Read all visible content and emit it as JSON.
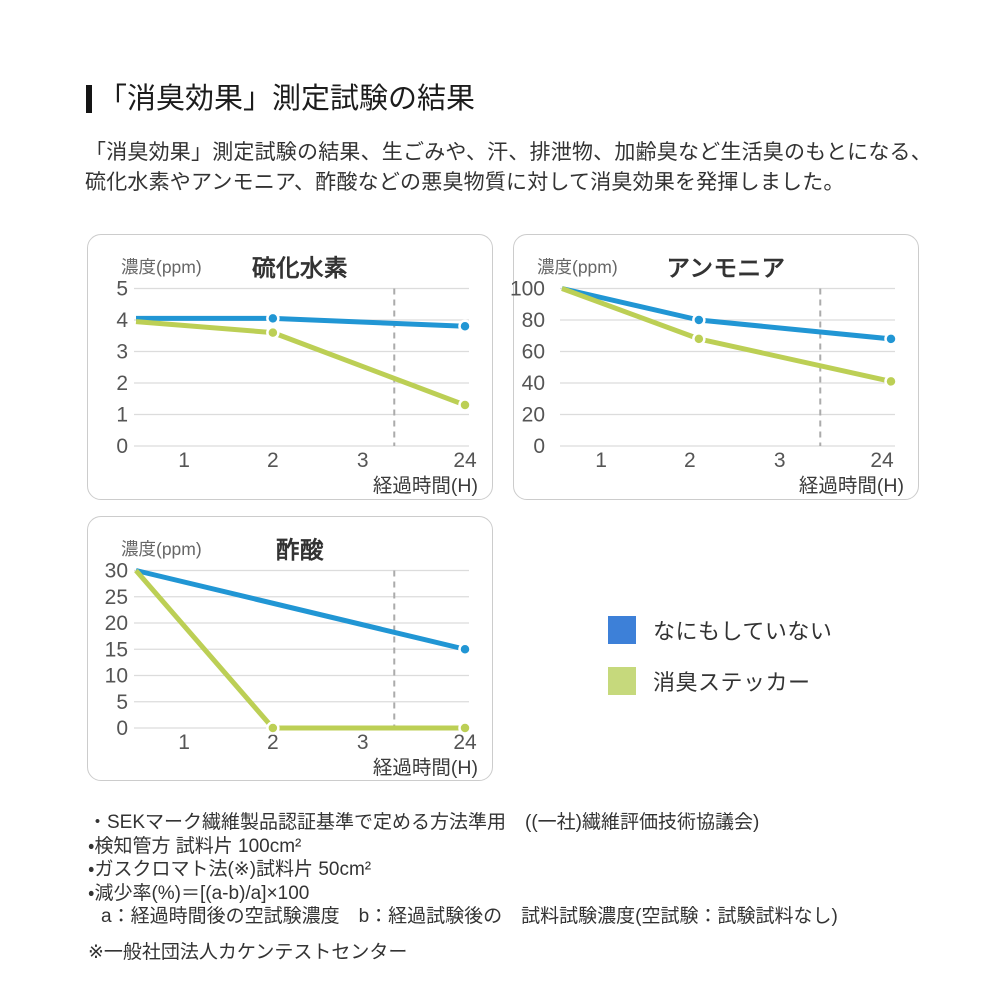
{
  "page": {
    "background": "#ffffff"
  },
  "header": {
    "title": "「消臭効果」測定試験の結果",
    "accent_bar_color": "#151515",
    "description_lines": [
      "「消臭効果」測定試験の結果、生ごみや、汗、排泄物、加齢臭など生活臭のもとになる、",
      "硫化水素やアンモニア、酢酸などの悪臭物質に対して消臭効果を発揮しました。"
    ]
  },
  "chart_data": [
    {
      "type": "line",
      "title": "硫化水素",
      "ylabel": "濃度(ppm)",
      "xlabel": "経過時間(H)",
      "categories": [
        "1",
        "2",
        "3",
        "24"
      ],
      "ylim": [
        0,
        5
      ],
      "yticks": [
        0,
        1,
        2,
        3,
        4,
        5
      ],
      "grid": true,
      "axis_break_between": [
        "3",
        "24"
      ],
      "series": [
        {
          "name": "なにもしていない",
          "color": "#2196d4",
          "start_value": 4.05,
          "points": [
            {
              "x": "2",
              "v": 4.05,
              "dot": true
            },
            {
              "x": "24",
              "v": 3.8,
              "dot": true
            }
          ]
        },
        {
          "name": "消臭ステッカー",
          "color": "#bccf55",
          "start_value": 3.95,
          "points": [
            {
              "x": "2",
              "v": 3.6,
              "dot": true
            },
            {
              "x": "24",
              "v": 1.3,
              "dot": true
            }
          ]
        }
      ]
    },
    {
      "type": "line",
      "title": "アンモニア",
      "ylabel": "濃度(ppm)",
      "xlabel": "経過時間(H)",
      "categories": [
        "1",
        "2",
        "3",
        "24"
      ],
      "ylim": [
        0,
        100
      ],
      "yticks": [
        0,
        20,
        40,
        60,
        80,
        100
      ],
      "grid": true,
      "axis_break_between": [
        "3",
        "24"
      ],
      "series": [
        {
          "name": "なにもしていない",
          "color": "#2196d4",
          "start_value": 100,
          "points": [
            {
              "x": "2",
              "v": 80,
              "dot": true
            },
            {
              "x": "24",
              "v": 68,
              "dot": true
            }
          ]
        },
        {
          "name": "消臭ステッカー",
          "color": "#bccf55",
          "start_value": 100,
          "points": [
            {
              "x": "2",
              "v": 68,
              "dot": true
            },
            {
              "x": "24",
              "v": 41,
              "dot": true
            }
          ]
        }
      ]
    },
    {
      "type": "line",
      "title": "酢酸",
      "ylabel": "濃度(ppm)",
      "xlabel": "経過時間(H)",
      "categories": [
        "1",
        "2",
        "3",
        "24"
      ],
      "ylim": [
        0,
        30
      ],
      "yticks": [
        0,
        5,
        10,
        15,
        20,
        25,
        30
      ],
      "grid": true,
      "axis_break_between": [
        "3",
        "24"
      ],
      "series": [
        {
          "name": "なにもしていない",
          "color": "#2196d4",
          "start_value": 30,
          "points": [
            {
              "x": "24",
              "v": 15,
              "dot": true
            }
          ]
        },
        {
          "name": "消臭ステッカー",
          "color": "#bccf55",
          "start_value": 30,
          "points": [
            {
              "x": "2",
              "v": 0,
              "dot": true
            },
            {
              "x": "24",
              "v": 0,
              "dot": true
            }
          ]
        }
      ]
    }
  ],
  "legend": {
    "items": [
      {
        "label": "なにもしていない",
        "color": "#3d80d8"
      },
      {
        "label": "消臭ステッカー",
        "color": "#c6d97c"
      }
    ]
  },
  "footnotes": {
    "bullets": [
      "・SEKマーク繊維製品認証基準で定める方法準用　((一社)繊維評価技術協議会)",
      "・検知管方 試料片 100cm²",
      "・ガスクロマト法(※)試料片 50cm²",
      "・減少率(%)＝[(a-b)/a]×100",
      "a：経過時間後の空試験濃度　b：経過試験後の　試料試験濃度(空試験：試験試料なし)"
    ],
    "source": "※一般社団法人カケンテストセンター"
  },
  "style_tokens": {
    "line_blue": "#2196d4",
    "line_green": "#bccf55",
    "grid_color": "#dcdcdc",
    "dash_color": "#ababab",
    "tick_color": "#555555"
  }
}
